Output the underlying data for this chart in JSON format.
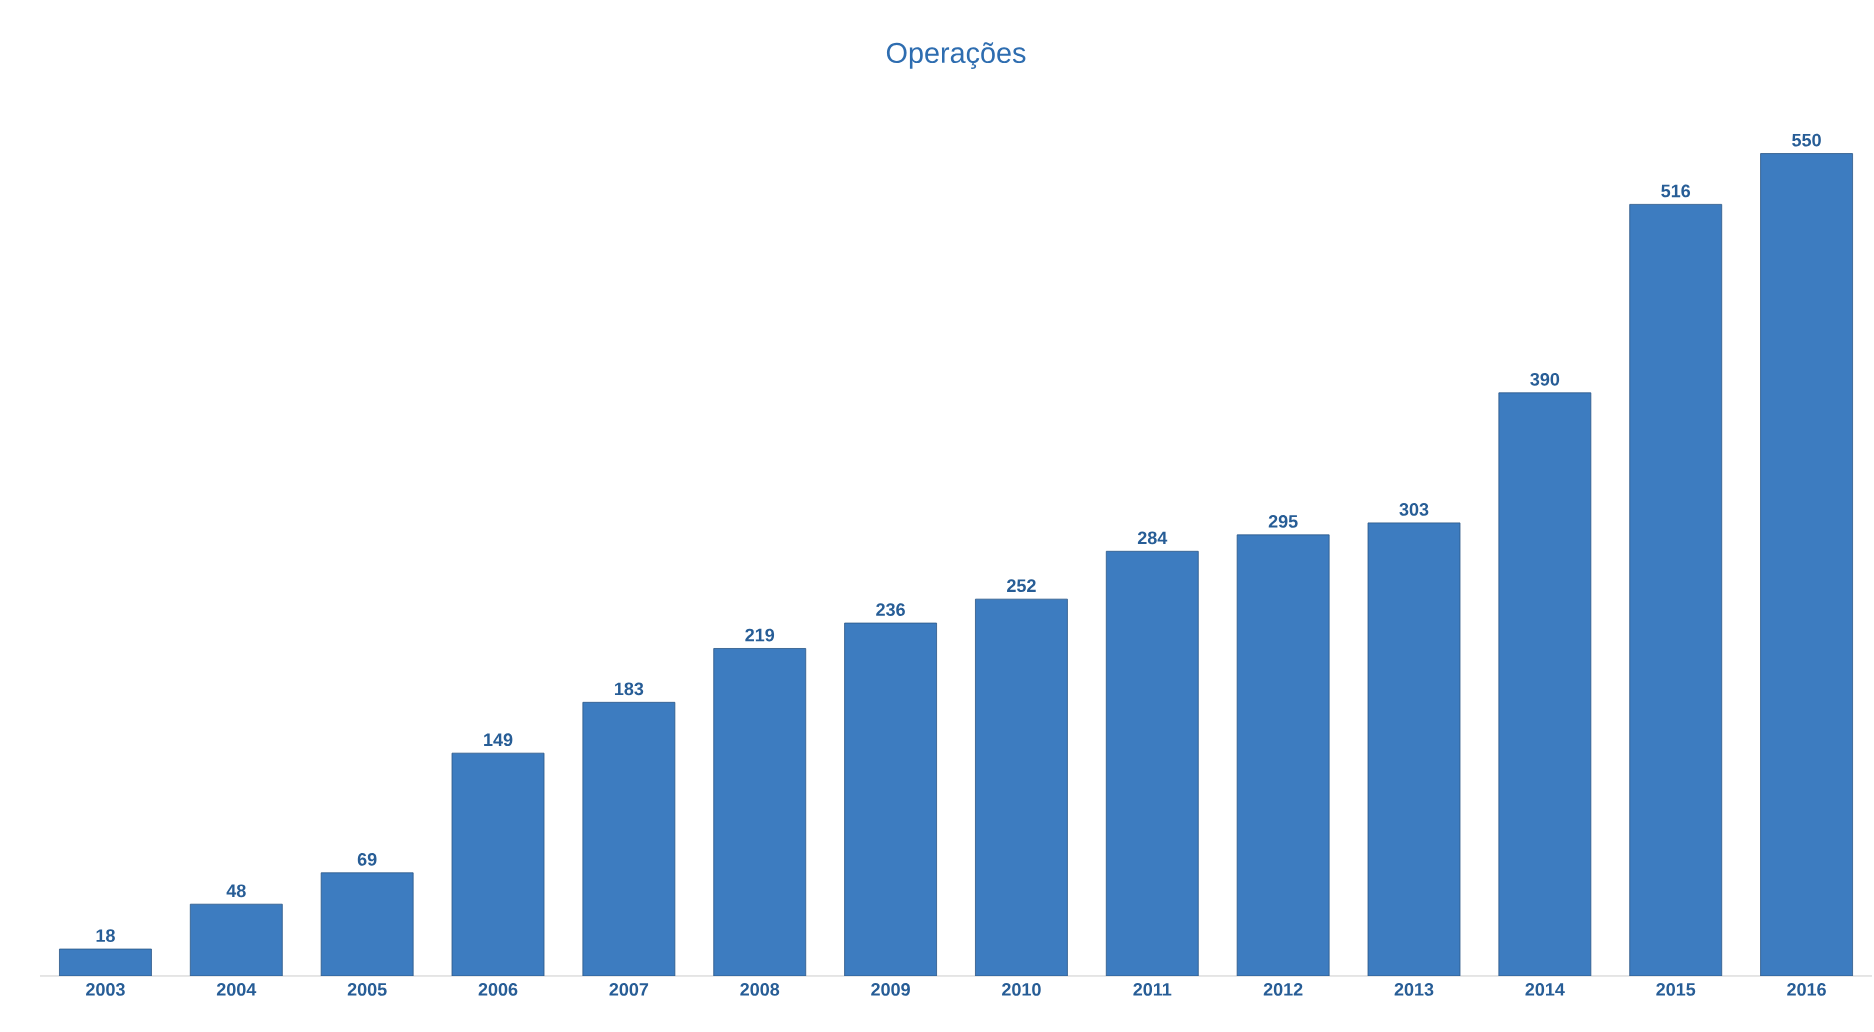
{
  "chart_data": {
    "type": "bar",
    "title": "Operações",
    "categories": [
      "2003",
      "2004",
      "2005",
      "2006",
      "2007",
      "2008",
      "2009",
      "2010",
      "2011",
      "2012",
      "2013",
      "2014",
      "2015",
      "2016"
    ],
    "values": [
      18,
      48,
      69,
      149,
      183,
      219,
      236,
      252,
      284,
      295,
      303,
      390,
      516,
      550
    ],
    "color": "#3d7cc0",
    "data_labels": true
  }
}
